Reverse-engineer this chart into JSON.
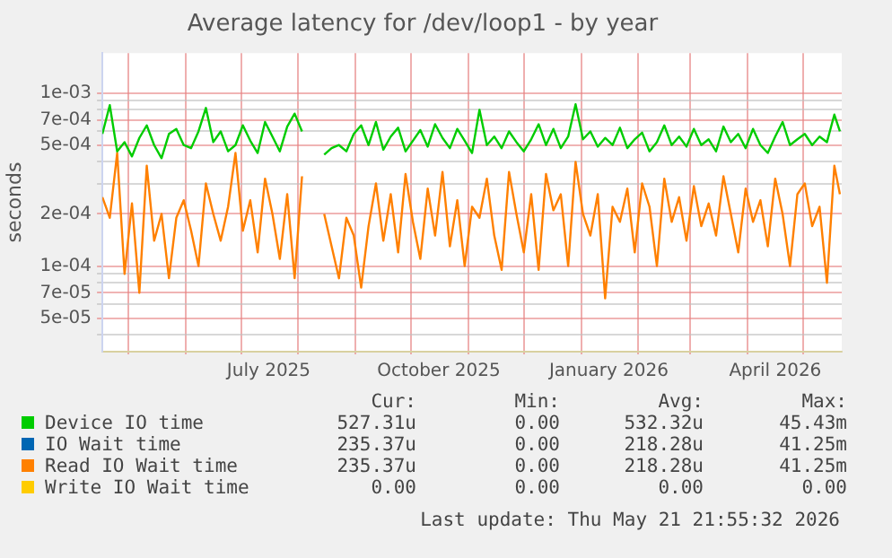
{
  "chart_data": {
    "type": "line",
    "title": "Average latency for /dev/loop1 - by year",
    "ylabel": "seconds",
    "log": "y",
    "grid": true,
    "legend": "bottom",
    "marker": "none",
    "line_style": "solid",
    "xlim": [
      "2025-04-17",
      "2026-05-22"
    ],
    "xticks": [
      {
        "value": "2025-05-01",
        "label": null
      },
      {
        "value": "2025-06-01",
        "label": null
      },
      {
        "value": "2025-07-01",
        "label": null
      },
      {
        "value": "2025-07-16",
        "label": "July 2025"
      },
      {
        "value": "2025-08-01",
        "label": null
      },
      {
        "value": "2025-09-01",
        "label": null
      },
      {
        "value": "2025-10-01",
        "label": null
      },
      {
        "value": "2025-10-16",
        "label": "October 2025"
      },
      {
        "value": "2025-11-01",
        "label": null
      },
      {
        "value": "2025-12-01",
        "label": null
      },
      {
        "value": "2026-01-01",
        "label": null
      },
      {
        "value": "2026-01-16",
        "label": "January 2026"
      },
      {
        "value": "2026-02-01",
        "label": null
      },
      {
        "value": "2026-03-01",
        "label": null
      },
      {
        "value": "2026-04-01",
        "label": null
      },
      {
        "value": "2026-04-16",
        "label": "April 2026"
      },
      {
        "value": "2026-05-01",
        "label": null
      }
    ],
    "ylim": [
      3.2e-05,
      0.0017
    ],
    "yticks": [
      {
        "value": 4e-05,
        "label": null
      },
      {
        "value": 5e-05,
        "label": "5e-05"
      },
      {
        "value": 6e-05,
        "label": null
      },
      {
        "value": 7e-05,
        "label": "7e-05"
      },
      {
        "value": 8e-05,
        "label": null
      },
      {
        "value": 9e-05,
        "label": null
      },
      {
        "value": 0.0001,
        "label": "1e-04"
      },
      {
        "value": 0.0002,
        "label": "2e-04"
      },
      {
        "value": 0.0003,
        "label": null
      },
      {
        "value": 0.0004,
        "label": null
      },
      {
        "value": 0.0005,
        "label": "5e-04"
      },
      {
        "value": 0.0006,
        "label": null
      },
      {
        "value": 0.0007,
        "label": "7e-04"
      },
      {
        "value": 0.0008,
        "label": null
      },
      {
        "value": 0.0009,
        "label": null
      },
      {
        "value": 0.001,
        "label": "1e-03"
      }
    ],
    "x": [
      "2025-04-17",
      "2025-04-21",
      "2025-04-25",
      "2025-04-29",
      "2025-05-03",
      "2025-05-07",
      "2025-05-11",
      "2025-05-15",
      "2025-05-19",
      "2025-05-23",
      "2025-05-27",
      "2025-05-31",
      "2025-06-04",
      "2025-06-08",
      "2025-06-12",
      "2025-06-16",
      "2025-06-20",
      "2025-06-24",
      "2025-06-28",
      "2025-07-02",
      "2025-07-06",
      "2025-07-10",
      "2025-07-14",
      "2025-07-18",
      "2025-07-22",
      "2025-07-26",
      "2025-07-30",
      "2025-08-03",
      "2025-08-07",
      "2025-08-11",
      "2025-08-15",
      "2025-08-19",
      "2025-08-23",
      "2025-08-27",
      "2025-08-31",
      "2025-09-04",
      "2025-09-08",
      "2025-09-12",
      "2025-09-16",
      "2025-09-20",
      "2025-09-24",
      "2025-09-28",
      "2025-10-02",
      "2025-10-06",
      "2025-10-10",
      "2025-10-14",
      "2025-10-18",
      "2025-10-22",
      "2025-10-26",
      "2025-10-30",
      "2025-11-03",
      "2025-11-07",
      "2025-11-11",
      "2025-11-15",
      "2025-11-19",
      "2025-11-23",
      "2025-11-27",
      "2025-12-01",
      "2025-12-05",
      "2025-12-09",
      "2025-12-13",
      "2025-12-17",
      "2025-12-21",
      "2025-12-25",
      "2025-12-29",
      "2026-01-02",
      "2026-01-06",
      "2026-01-10",
      "2026-01-14",
      "2026-01-18",
      "2026-01-22",
      "2026-01-26",
      "2026-01-30",
      "2026-02-03",
      "2026-02-07",
      "2026-02-11",
      "2026-02-15",
      "2026-02-19",
      "2026-02-23",
      "2026-02-27",
      "2026-03-03",
      "2026-03-07",
      "2026-03-11",
      "2026-03-15",
      "2026-03-19",
      "2026-03-23",
      "2026-03-27",
      "2026-03-31",
      "2026-04-04",
      "2026-04-08",
      "2026-04-12",
      "2026-04-16",
      "2026-04-20",
      "2026-04-24",
      "2026-04-28",
      "2026-05-02",
      "2026-05-06",
      "2026-05-10",
      "2026-05-14",
      "2026-05-18",
      "2026-05-21"
    ],
    "series": [
      {
        "name": "Device IO time",
        "color": "#00cc00",
        "values": [
          0.00058,
          0.00085,
          0.00046,
          0.00052,
          0.00043,
          0.00055,
          0.00065,
          0.0005,
          0.00042,
          0.00058,
          0.00062,
          0.0005,
          0.00048,
          0.0006,
          0.00082,
          0.00052,
          0.0006,
          0.00046,
          0.0005,
          0.00065,
          0.00053,
          0.00045,
          0.00068,
          0.00056,
          0.00046,
          0.00064,
          0.00076,
          0.0006,
          null,
          null,
          0.00044,
          0.00048,
          0.0005,
          0.00046,
          0.00058,
          0.00065,
          0.0005,
          0.00068,
          0.00047,
          0.00056,
          0.00063,
          0.00046,
          0.00053,
          0.00061,
          0.00049,
          0.00066,
          0.00055,
          0.00048,
          0.00062,
          0.00053,
          0.00045,
          0.0008,
          0.0005,
          0.00056,
          0.00048,
          0.0006,
          0.00052,
          0.00046,
          0.00054,
          0.00066,
          0.0005,
          0.00062,
          0.00048,
          0.00056,
          0.00086,
          0.00054,
          0.0006,
          0.00049,
          0.00055,
          0.0005,
          0.00063,
          0.00048,
          0.00054,
          0.00059,
          0.00046,
          0.00052,
          0.00065,
          0.0005,
          0.00056,
          0.00049,
          0.00062,
          0.0005,
          0.00054,
          0.00046,
          0.00064,
          0.00052,
          0.00058,
          0.00048,
          0.00062,
          0.0005,
          0.00045,
          0.00056,
          0.00068,
          0.0005,
          0.00054,
          0.00058,
          0.0005,
          0.00056,
          0.00052,
          0.00075,
          0.0006
        ]
      },
      {
        "name": "IO Wait time",
        "color": "#0066b3",
        "values": [
          null,
          null,
          null,
          null,
          null,
          null,
          null,
          null,
          null,
          null,
          null,
          null,
          null,
          null,
          null,
          null,
          null,
          null,
          null,
          null,
          null,
          null,
          null,
          null,
          null,
          null,
          null,
          null,
          null,
          null,
          null,
          null,
          null,
          null,
          null,
          null,
          null,
          null,
          null,
          null,
          null,
          null,
          null,
          null,
          null,
          null,
          null,
          null,
          null,
          null,
          null,
          null,
          null,
          null,
          null,
          null,
          null,
          null,
          null,
          null,
          null,
          null,
          null,
          null,
          null,
          null,
          null,
          null,
          null,
          null,
          null,
          null,
          null,
          null,
          null,
          null,
          null,
          null,
          null,
          null,
          null,
          null,
          null,
          null,
          null,
          null,
          null,
          null,
          null,
          null,
          null,
          null,
          null,
          null,
          null,
          null,
          null,
          null,
          null,
          null,
          null
        ]
      },
      {
        "name": "Read IO Wait time",
        "color": "#ff8000",
        "values": [
          0.00025,
          0.00019,
          0.00045,
          9e-05,
          0.00023,
          7e-05,
          0.00038,
          0.00014,
          0.0002,
          8.5e-05,
          0.00019,
          0.00024,
          0.00016,
          0.0001,
          0.0003,
          0.0002,
          0.00014,
          0.00022,
          0.00045,
          0.00016,
          0.00024,
          0.00012,
          0.00032,
          0.0002,
          0.00011,
          0.00026,
          8.5e-05,
          0.00033,
          null,
          null,
          0.0002,
          0.00013,
          8.5e-05,
          0.00019,
          0.00015,
          7.5e-05,
          0.00017,
          0.0003,
          0.00014,
          0.00026,
          0.00012,
          0.00034,
          0.00018,
          0.00011,
          0.00028,
          0.00015,
          0.00035,
          0.00013,
          0.00024,
          0.0001,
          0.00022,
          0.00019,
          0.00032,
          0.00015,
          9.5e-05,
          0.00035,
          0.0002,
          0.00012,
          0.00026,
          9.5e-05,
          0.00034,
          0.00021,
          0.00026,
          0.0001,
          0.0004,
          0.0002,
          0.00015,
          0.00026,
          6.5e-05,
          0.00022,
          0.00018,
          0.00028,
          0.00012,
          0.0003,
          0.00022,
          0.0001,
          0.00032,
          0.00018,
          0.00025,
          0.00014,
          0.00029,
          0.00017,
          0.00023,
          0.00015,
          0.00033,
          0.0002,
          0.00012,
          0.00028,
          0.00018,
          0.00024,
          0.00013,
          0.00032,
          0.0002,
          0.0001,
          0.00026,
          0.0003,
          0.00017,
          0.00022,
          8e-05,
          0.00038,
          0.00026
        ]
      },
      {
        "name": "Write IO Wait time",
        "color": "#ffcc00",
        "values": [
          null,
          null,
          null,
          null,
          null,
          null,
          null,
          null,
          null,
          null,
          null,
          null,
          null,
          null,
          null,
          null,
          null,
          null,
          null,
          null,
          null,
          null,
          null,
          null,
          null,
          null,
          null,
          null,
          null,
          null,
          null,
          null,
          null,
          null,
          null,
          null,
          null,
          null,
          null,
          null,
          null,
          null,
          null,
          null,
          null,
          null,
          null,
          null,
          null,
          null,
          null,
          null,
          null,
          null,
          null,
          null,
          null,
          null,
          null,
          null,
          null,
          null,
          null,
          null,
          null,
          null,
          null,
          null,
          null,
          null,
          null,
          null,
          null,
          null,
          null,
          null,
          null,
          null,
          null,
          null,
          null,
          null,
          null,
          null,
          null,
          null,
          null,
          null,
          null,
          null,
          null,
          null,
          null,
          null,
          null,
          null,
          null,
          null,
          null,
          null,
          null
        ]
      }
    ],
    "annotations": [
      "Cur:",
      "Min:",
      "Avg:",
      "Max:",
      "527.31u",
      "0.00",
      "532.32u",
      "45.43m",
      "235.37u",
      "0.00",
      "218.28u",
      "41.25m",
      "235.37u",
      "0.00",
      "218.28u",
      "41.25m",
      "0.00",
      "0.00",
      "0.00",
      "0.00",
      "Last update: Thu May 21 21:55:32 2026"
    ]
  }
}
